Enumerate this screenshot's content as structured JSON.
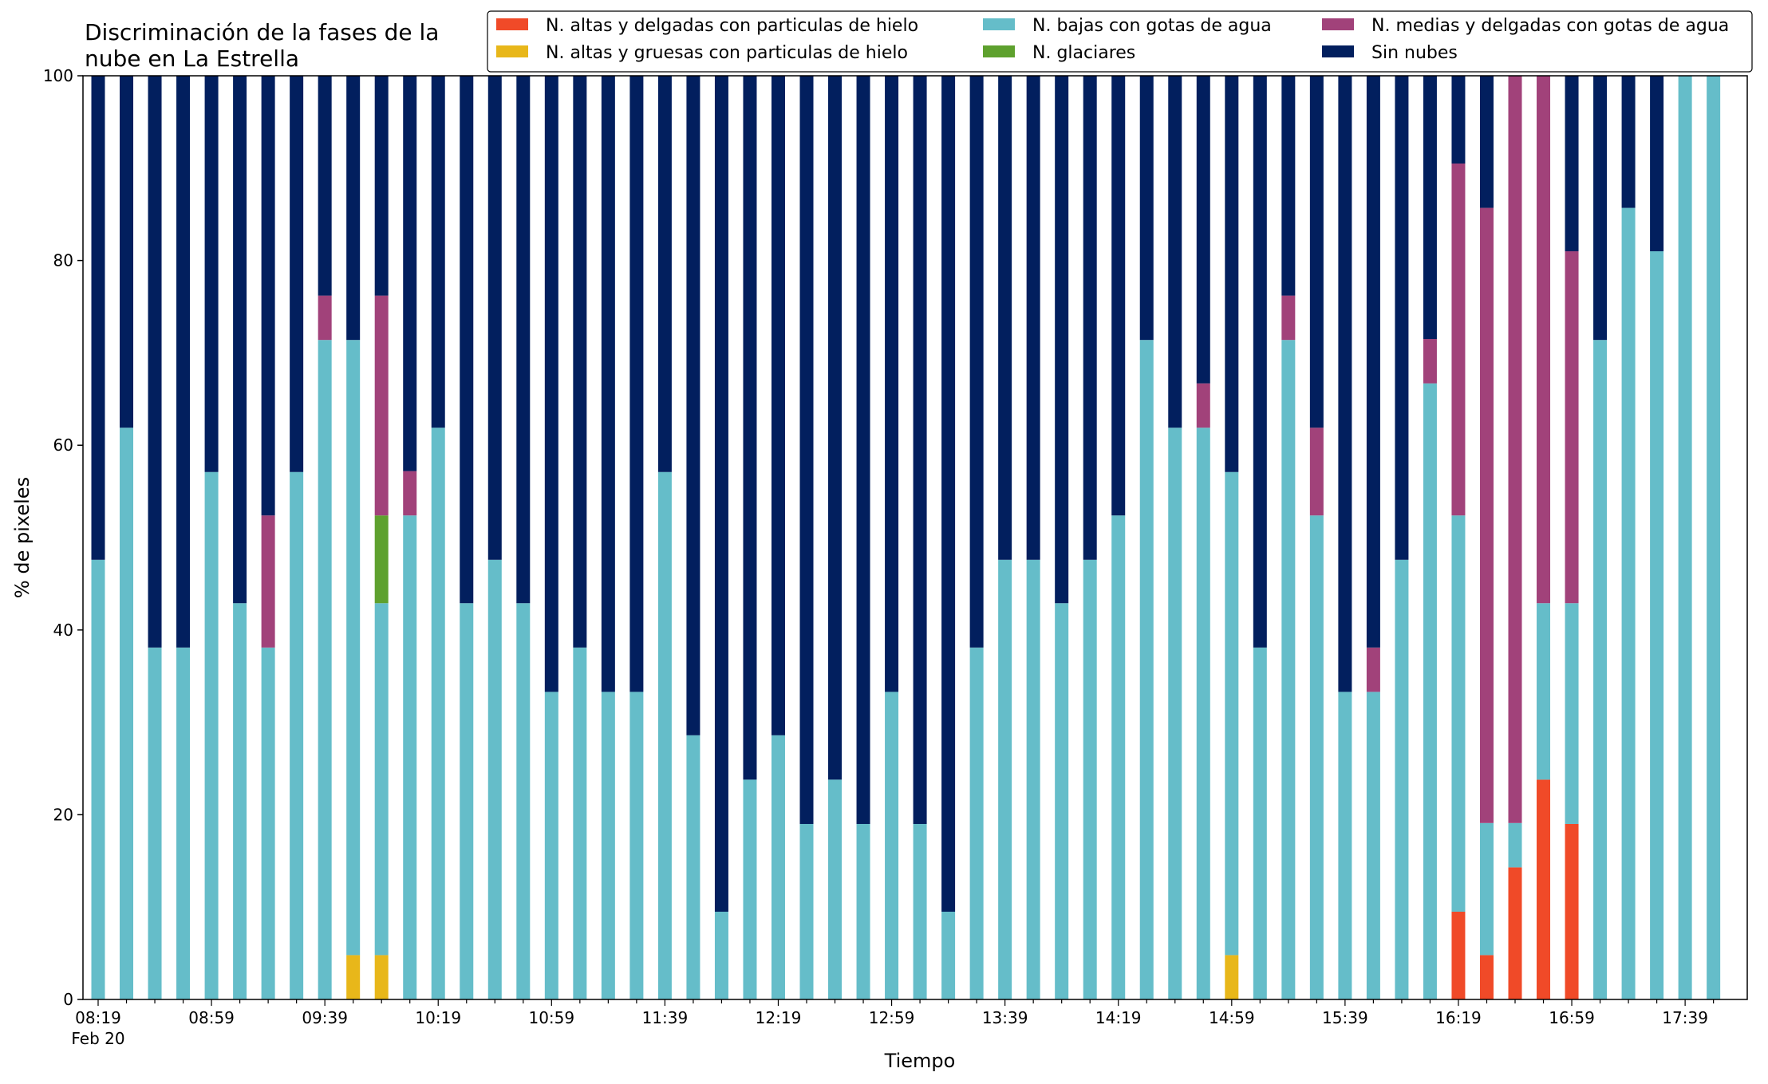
{
  "chart_data": {
    "type": "bar",
    "stacked": true,
    "title": "Discriminación de la fases de la nube en La Estrella",
    "title_lines": [
      "Discriminación de la fases de la",
      "nube en La Estrella"
    ],
    "xlabel": "Tiempo",
    "ylabel": "% de pixeles",
    "ylim": [
      0,
      100
    ],
    "yticks": [
      0,
      20,
      40,
      60,
      80,
      100
    ],
    "grid": false,
    "legend_position": "top-right",
    "x_tick_labels": [
      "08:19",
      "08:59",
      "09:39",
      "10:19",
      "10:59",
      "11:39",
      "12:19",
      "12:59",
      "13:39",
      "14:19",
      "14:59",
      "15:39",
      "16:19",
      "16:59",
      "17:39"
    ],
    "x_date_label": "Feb 20",
    "categories": [
      "08:19",
      "08:29",
      "08:39",
      "08:49",
      "08:59",
      "09:09",
      "09:19",
      "09:29",
      "09:39",
      "09:49",
      "09:59",
      "10:09",
      "10:19",
      "10:29",
      "10:39",
      "10:49",
      "10:59",
      "11:09",
      "11:19",
      "11:29",
      "11:39",
      "11:49",
      "11:59",
      "12:09",
      "12:19",
      "12:29",
      "12:39",
      "12:49",
      "12:59",
      "13:09",
      "13:19",
      "13:29",
      "13:39",
      "13:49",
      "13:59",
      "14:09",
      "14:19",
      "14:29",
      "14:39",
      "14:49",
      "14:59",
      "15:09",
      "15:19",
      "15:29",
      "15:39",
      "15:49",
      "15:59",
      "16:09",
      "16:19",
      "16:29",
      "16:39",
      "16:49",
      "16:59",
      "17:09",
      "17:19",
      "17:29",
      "17:39",
      "17:49"
    ],
    "series": [
      {
        "name": "N. altas y delgadas con particulas de hielo",
        "color": "#f04a28",
        "values": [
          0,
          0,
          0,
          0,
          0,
          0,
          0,
          0,
          0,
          0,
          0,
          0,
          0,
          0,
          0,
          0,
          0,
          0,
          0,
          0,
          0,
          0,
          0,
          0,
          0,
          0,
          0,
          0,
          0,
          0,
          0,
          0,
          0,
          0,
          0,
          0,
          0,
          0,
          0,
          0,
          0,
          0,
          0,
          0,
          0,
          0,
          0,
          0,
          9.5,
          4.8,
          14.3,
          23.8,
          19.0,
          0,
          0,
          0,
          0,
          0
        ]
      },
      {
        "name": "N. altas y gruesas con particulas de hielo",
        "color": "#e8b71a",
        "values": [
          0,
          0,
          0,
          0,
          0,
          0,
          0,
          0,
          0,
          4.8,
          4.8,
          0,
          0,
          0,
          0,
          0,
          0,
          0,
          0,
          0,
          0,
          0,
          0,
          0,
          0,
          0,
          0,
          0,
          0,
          0,
          0,
          0,
          0,
          0,
          0,
          0,
          0,
          0,
          0,
          0,
          4.8,
          0,
          0,
          0,
          0,
          0,
          0,
          0,
          0,
          0,
          0,
          0,
          0,
          0,
          0,
          0,
          0,
          0
        ]
      },
      {
        "name": "N. bajas con gotas de agua",
        "color": "#65bdc9",
        "values": [
          47.6,
          61.9,
          38.1,
          38.1,
          57.1,
          42.9,
          38.1,
          57.1,
          71.4,
          66.6,
          38.1,
          52.4,
          61.9,
          42.9,
          47.6,
          42.9,
          33.3,
          38.1,
          33.3,
          33.3,
          57.1,
          28.6,
          9.5,
          23.8,
          28.6,
          19.0,
          23.8,
          19.0,
          33.3,
          19.0,
          9.5,
          38.1,
          47.6,
          47.6,
          42.9,
          47.6,
          52.4,
          71.4,
          61.9,
          61.9,
          52.3,
          38.1,
          71.4,
          52.4,
          33.3,
          33.3,
          47.6,
          66.7,
          42.9,
          14.3,
          4.8,
          19.1,
          23.9,
          71.4,
          85.7,
          81.0,
          100,
          100
        ]
      },
      {
        "name": "N. glaciares",
        "color": "#5ea12e",
        "values": [
          0,
          0,
          0,
          0,
          0,
          0,
          0,
          0,
          0,
          0,
          9.5,
          0,
          0,
          0,
          0,
          0,
          0,
          0,
          0,
          0,
          0,
          0,
          0,
          0,
          0,
          0,
          0,
          0,
          0,
          0,
          0,
          0,
          0,
          0,
          0,
          0,
          0,
          0,
          0,
          0,
          0,
          0,
          0,
          0,
          0,
          0,
          0,
          0,
          0,
          0,
          0,
          0,
          0,
          0,
          0,
          0,
          0,
          0
        ]
      },
      {
        "name": "N. medias y delgadas con gotas de agua",
        "color": "#a1427a",
        "values": [
          0,
          0,
          0,
          0,
          0,
          0,
          14.3,
          0,
          4.8,
          0,
          23.8,
          4.8,
          0,
          0,
          0,
          0,
          0,
          0,
          0,
          0,
          0,
          0,
          0,
          0,
          0,
          0,
          0,
          0,
          0,
          0,
          0,
          0,
          0,
          0,
          0,
          0,
          0,
          0,
          0,
          4.8,
          0,
          0,
          4.8,
          9.5,
          0,
          4.8,
          0,
          4.8,
          38.1,
          66.6,
          80.9,
          57.1,
          38.1,
          0,
          0,
          0,
          0,
          0
        ]
      },
      {
        "name": "Sin nubes",
        "color": "#021f5e",
        "values": [
          52.4,
          38.1,
          61.9,
          61.9,
          42.9,
          57.1,
          47.6,
          42.9,
          23.8,
          28.6,
          23.8,
          42.8,
          38.1,
          57.1,
          52.4,
          57.1,
          66.7,
          61.9,
          66.7,
          66.7,
          42.9,
          71.4,
          90.5,
          76.2,
          71.4,
          81.0,
          76.2,
          81.0,
          66.7,
          81.0,
          90.5,
          61.9,
          52.4,
          52.4,
          57.1,
          52.4,
          47.6,
          28.6,
          38.1,
          33.3,
          42.9,
          61.9,
          23.8,
          38.1,
          66.7,
          61.9,
          52.4,
          28.5,
          9.5,
          14.3,
          0,
          0,
          19.0,
          28.6,
          14.3,
          19.0,
          0,
          0
        ]
      }
    ]
  }
}
